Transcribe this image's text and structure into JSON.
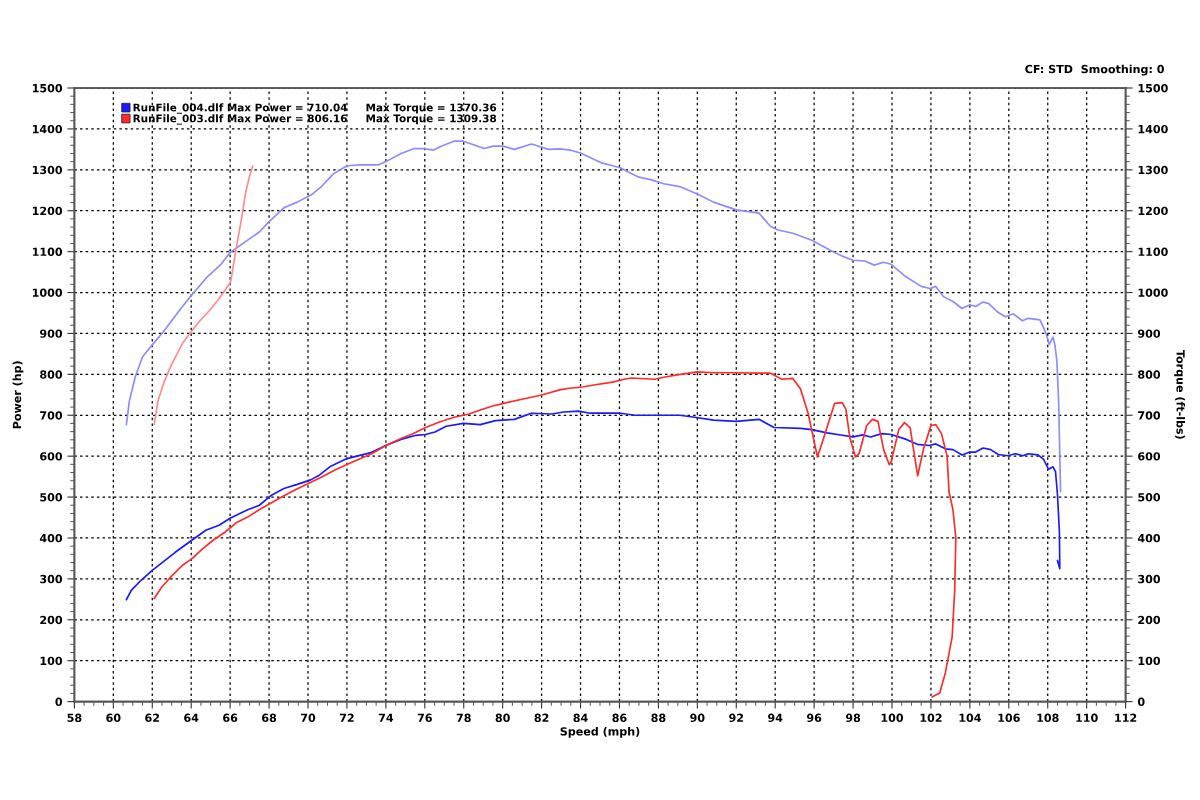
{
  "chart_data": {
    "type": "line",
    "xlabel": "Speed (mph)",
    "ylabel": "Power (hp)",
    "y2label": "Torque (ft-lbs)",
    "annotations": [
      "CF: STD  Smoothing: 0"
    ],
    "xlim": [
      58,
      112
    ],
    "xticks": [
      58,
      60,
      62,
      64,
      66,
      68,
      70,
      72,
      74,
      76,
      78,
      80,
      82,
      84,
      86,
      88,
      90,
      92,
      94,
      96,
      98,
      100,
      102,
      104,
      106,
      108,
      110,
      112
    ],
    "ylim": [
      0,
      1500
    ],
    "yticks": [
      0,
      100,
      200,
      300,
      400,
      500,
      600,
      700,
      800,
      900,
      1000,
      1100,
      1200,
      1300,
      1400,
      1500
    ],
    "y2lim": [
      0,
      1500
    ],
    "y2ticks": [
      0,
      100,
      200,
      300,
      400,
      500,
      600,
      700,
      800,
      900,
      1000,
      1100,
      1200,
      1300,
      1400,
      1500
    ],
    "grid": true,
    "legend": "top left",
    "series": [
      {
        "name": "RunFile_004.dlf Max Power = 710.04     Max Torque = 1370.36",
        "color": "#1a1aff",
        "x": [
          60.67,
          60.92,
          61.41,
          62.0,
          62.59,
          63.18,
          63.96,
          64.75,
          65.43,
          66.02,
          66.9,
          67.5,
          68.08,
          68.76,
          69.45,
          70.14,
          70.53,
          71.12,
          72.0,
          73.18,
          74.0,
          74.78,
          75.55,
          76.04,
          76.52,
          77.1,
          77.98,
          78.85,
          79.63,
          80.6,
          81.48,
          82.54,
          83.13,
          83.9,
          84.49,
          86.04,
          86.8,
          88.27,
          89.09,
          89.86,
          90.83,
          92.0,
          93.17,
          93.94,
          95.3,
          95.88,
          96.66,
          97.44,
          98.0,
          98.5,
          98.9,
          99.48,
          99.96,
          100.74,
          101.3,
          101.9,
          102.25,
          102.74,
          103.13,
          103.6,
          104.0,
          104.3,
          104.68,
          105.07,
          105.46,
          105.94,
          106.33,
          106.72,
          107.0,
          107.5,
          107.79,
          108.04,
          108.27,
          108.4,
          108.5,
          108.6,
          108.62,
          108.5
        ],
        "values": [
          249,
          272,
          296,
          321,
          343,
          365,
          392,
          419,
          431,
          449,
          469,
          480,
          503,
          521,
          531,
          542,
          552,
          574,
          594,
          608,
          626,
          641,
          651,
          653,
          659,
          673,
          680,
          677,
          687,
          690,
          705,
          703,
          708,
          710,
          705,
          705,
          700,
          700,
          700,
          695,
          688,
          685,
          690,
          670,
          668,
          665,
          657,
          651,
          647,
          652,
          647,
          655,
          653,
          641,
          629,
          626,
          630,
          618,
          616,
          603,
          610,
          610,
          620,
          616,
          604,
          601,
          606,
          601,
          606,
          603,
          592,
          568,
          574,
          562,
          507,
          414,
          325,
          345
        ]
      },
      {
        "name": "RunFile_003.dlf Max Power = 806.16     Max Torque = 1309.38",
        "color": "#ff2a2a",
        "x": [
          62.1,
          62.49,
          62.98,
          63.57,
          64.06,
          64.55,
          65.14,
          65.73,
          66.31,
          66.9,
          67.49,
          68.08,
          68.67,
          69.35,
          70.04,
          70.63,
          71.41,
          72.2,
          73.27,
          74.0,
          74.78,
          75.36,
          76.04,
          76.72,
          77.5,
          78.27,
          78.85,
          79.44,
          80.21,
          80.99,
          81.96,
          82.93,
          83.42,
          84.1,
          84.68,
          85.65,
          86.23,
          86.62,
          87.79,
          88.27,
          88.89,
          90.0,
          90.83,
          92.0,
          93.17,
          93.75,
          94.33,
          94.91,
          95.3,
          95.69,
          96.17,
          96.56,
          97.05,
          97.44,
          97.63,
          97.83,
          98.12,
          98.31,
          98.7,
          98.99,
          99.28,
          99.57,
          99.86,
          99.96,
          100.35,
          100.64,
          100.93,
          101.32,
          101.61,
          102.0,
          102.25,
          102.54,
          102.83,
          102.93,
          103.13,
          103.28,
          103.22,
          103.09,
          102.74,
          102.45,
          102.06
        ],
        "values": [
          252,
          280,
          306,
          334,
          350,
          372,
          395,
          414,
          437,
          451,
          469,
          485,
          501,
          518,
          534,
          547,
          567,
          584,
          606,
          626,
          643,
          654,
          670,
          683,
          695,
          703,
          713,
          722,
          731,
          739,
          749,
          762,
          766,
          769,
          774,
          781,
          788,
          791,
          788,
          793,
          798,
          806,
          804,
          804,
          803,
          803,
          788,
          790,
          764,
          705,
          598,
          655,
          729,
          731,
          715,
          646,
          598,
          606,
          675,
          690,
          685,
          616,
          579,
          587,
          665,
          682,
          670,
          552,
          616,
          675,
          677,
          655,
          600,
          513,
          469,
          400,
          271,
          158,
          70,
          21,
          11
        ]
      },
      {
        "color": "#8c8cff",
        "x": [
          60.67,
          60.82,
          61.12,
          61.5,
          62.0,
          62.6,
          63.47,
          63.96,
          64.84,
          65.53,
          66.0,
          66.9,
          67.5,
          67.98,
          68.76,
          69.45,
          70.24,
          70.73,
          71.3,
          72.0,
          72.7,
          73.6,
          74.0,
          74.78,
          75.46,
          75.94,
          76.43,
          76.9,
          77.5,
          77.98,
          78.47,
          79.05,
          79.53,
          80.02,
          80.6,
          81.48,
          82.35,
          82.93,
          83.5,
          84.0,
          84.49,
          85.07,
          85.65,
          86.04,
          86.43,
          87.0,
          87.6,
          88.27,
          89.09,
          90.0,
          90.83,
          92.0,
          93.17,
          93.75,
          94.14,
          94.91,
          95.88,
          96.85,
          97.44,
          98.0,
          98.6,
          99.09,
          99.57,
          99.96,
          100.7,
          101.5,
          101.96,
          102.25,
          102.64,
          103.13,
          103.6,
          104.0,
          104.3,
          104.68,
          104.97,
          105.46,
          105.84,
          106.23,
          106.7,
          107.0,
          107.6,
          107.9,
          108.08,
          108.27,
          108.37,
          108.47,
          108.56,
          108.66
        ],
        "values": [
          677,
          734,
          793,
          843,
          872,
          906,
          961,
          990,
          1039,
          1069,
          1098,
          1128,
          1148,
          1172,
          1207,
          1221,
          1241,
          1261,
          1290,
          1310,
          1312,
          1312,
          1320,
          1340,
          1352,
          1352,
          1348,
          1359,
          1370,
          1370,
          1362,
          1352,
          1358,
          1358,
          1350,
          1363,
          1350,
          1351,
          1348,
          1341,
          1330,
          1317,
          1310,
          1305,
          1295,
          1282,
          1276,
          1266,
          1259,
          1241,
          1221,
          1202,
          1194,
          1162,
          1153,
          1145,
          1128,
          1103,
          1089,
          1079,
          1077,
          1067,
          1074,
          1069,
          1039,
          1015,
          1010,
          1015,
          990,
          978,
          961,
          970,
          966,
          977,
          973,
          951,
          941,
          948,
          931,
          937,
          933,
          902,
          873,
          891,
          872,
          832,
          733,
          513
        ]
      },
      {
        "color": "#ff8c8c",
        "x": [
          62.1,
          62.29,
          62.59,
          62.98,
          63.57,
          63.96,
          64.45,
          64.94,
          65.43,
          66.02,
          66.31,
          66.61,
          66.8,
          67.0,
          67.16
        ],
        "values": [
          677,
          734,
          779,
          823,
          877,
          902,
          931,
          956,
          985,
          1025,
          1108,
          1187,
          1246,
          1285,
          1309
        ]
      }
    ]
  }
}
